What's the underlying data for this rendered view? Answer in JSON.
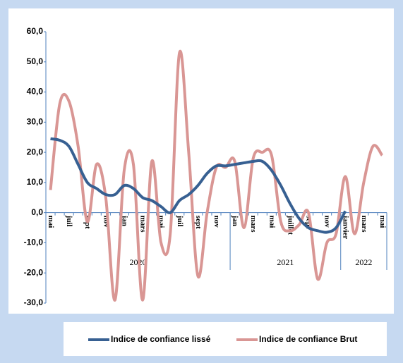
{
  "chart_data": {
    "type": "line",
    "categories": [
      "mai",
      null,
      "juil",
      null,
      "sept",
      null,
      "nov",
      null,
      "jan",
      null,
      "mars",
      null,
      "mai",
      null,
      "juil",
      null,
      "sept",
      null,
      "nov",
      null,
      "jan",
      null,
      "mars",
      null,
      "mai",
      null,
      "juillet",
      null,
      "sept",
      null,
      "nov",
      null,
      "janvier",
      null,
      "mars",
      null,
      "mai"
    ],
    "groups": [
      {
        "label": "2020",
        "count": 20
      },
      {
        "label": "2021",
        "count": 12
      },
      {
        "label": "2022",
        "count": 5
      }
    ],
    "series": [
      {
        "name": "Indice de confiance lissé",
        "color": "#376092",
        "values": [
          24.5,
          24,
          22,
          16,
          10,
          8,
          6,
          6,
          9,
          8,
          5,
          4,
          2,
          0,
          4,
          6,
          9,
          13,
          15.5,
          15.5,
          16,
          16.5,
          17,
          17,
          14,
          9,
          3,
          -2,
          -5,
          -6,
          -6.5,
          -5,
          0.5,
          null,
          null,
          null,
          null
        ]
      },
      {
        "name": "Indice de confiance Brut",
        "color": "#d99694",
        "values": [
          7.5,
          36,
          37,
          22,
          -3,
          16,
          5,
          -29,
          14,
          16,
          -29,
          17,
          -10,
          -7,
          53,
          20,
          -21,
          0,
          15,
          15,
          17,
          -5,
          18,
          20,
          19,
          -3,
          -6,
          -4,
          0,
          -22,
          -10,
          -7,
          12,
          -7,
          10,
          22,
          19
        ]
      }
    ],
    "ylim": [
      -30,
      60
    ],
    "yticks": [
      {
        "value": -30,
        "label": "-30,0"
      },
      {
        "value": -20,
        "label": "-20,0"
      },
      {
        "value": -10,
        "label": "-10,0"
      },
      {
        "value": 0,
        "label": "0,0"
      },
      {
        "value": 10,
        "label": "10,0"
      },
      {
        "value": 20,
        "label": "20,0"
      },
      {
        "value": 30,
        "label": "30,0"
      },
      {
        "value": 40,
        "label": "40,0"
      },
      {
        "value": 50,
        "label": "50,0"
      },
      {
        "value": 60,
        "label": "60,0"
      }
    ]
  }
}
